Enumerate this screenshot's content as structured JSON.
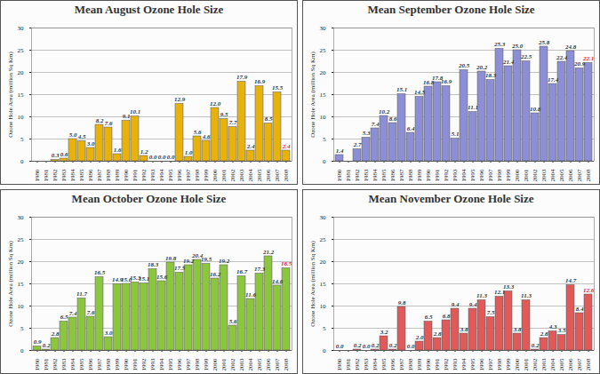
{
  "chart_data": [
    {
      "type": "bar",
      "title": "Mean August Ozone Hole Size",
      "y_label": "Ozone Hole Area (million Sq Km)",
      "categories": [
        "1980",
        "1981",
        "1982",
        "1983",
        "1984",
        "1985",
        "1986",
        "1987",
        "1988",
        "1989",
        "1990",
        "1991",
        "1992",
        "1993",
        "1994",
        "1995",
        "1996",
        "1997",
        "1998",
        "1999",
        "2000",
        "2001",
        "2002",
        "2003",
        "2004",
        "2005",
        "2006",
        "2007",
        "2008"
      ],
      "values": [
        null,
        null,
        0.3,
        0.6,
        5.0,
        4.5,
        3.0,
        8.2,
        7.6,
        1.6,
        9.1,
        10.1,
        1.2,
        0.0,
        0.0,
        0.0,
        12.9,
        1.0,
        5.6,
        4.6,
        12.0,
        9.5,
        7.7,
        17.9,
        2.4,
        16.9,
        8.5,
        15.5,
        2.4
      ],
      "value_labels": [
        null,
        null,
        "0.3",
        "0.6",
        "5.0",
        "4.5",
        "3.0",
        "8.2",
        "7.6",
        "1.6",
        "9.1",
        "10.1",
        "1.2",
        "0.0",
        "0.0",
        "0.0",
        "12.9",
        "1.0",
        "5.6",
        "4.6",
        "12.0",
        "9.5",
        "7.7",
        "17.9",
        "2.4",
        "16.9",
        "8.5",
        "15.5",
        "2.4"
      ],
      "color": "#e8b20c",
      "ylim": [
        0,
        30
      ],
      "yticks": [
        0,
        5,
        10,
        15,
        20,
        25,
        30
      ],
      "grid": true,
      "data_labels": true
    },
    {
      "type": "bar",
      "title": "Mean September Ozone Hole Size",
      "y_label": "Ozone Hole Area (million Sq Km)",
      "categories": [
        "1980",
        "1981",
        "1982",
        "1983",
        "1984",
        "1985",
        "1986",
        "1987",
        "1988",
        "1989",
        "1990",
        "1991",
        "1992",
        "1993",
        "1994",
        "1995",
        "1996",
        "1997",
        "1998",
        "1999",
        "2000",
        "2001",
        "2002",
        "2003",
        "2004",
        "2005",
        "2006",
        "2007",
        "2008"
      ],
      "values": [
        1.4,
        null,
        2.7,
        5.3,
        7.4,
        10.2,
        8.6,
        15.1,
        6.4,
        14.5,
        16.8,
        17.8,
        16.9,
        5.1,
        20.5,
        11.1,
        20.2,
        18.3,
        25.3,
        21.4,
        25.0,
        22.5,
        10.8,
        25.8,
        17.4,
        22.4,
        24.8,
        20.9,
        22.1
      ],
      "value_labels": [
        "1.4",
        null,
        "2.7",
        "5.3",
        "7.4",
        "10.2",
        "8.6",
        "15.1",
        "6.4",
        "14.5",
        "16.8",
        "17.8",
        "16.9",
        "5.1",
        "20.5",
        "11.1",
        "20.2",
        "18.3",
        "25.3",
        "21.4",
        "25.0",
        "22.5",
        "10.8",
        "25.8",
        "17.4",
        "22.4",
        "24.8",
        "20.9",
        "22.1"
      ],
      "color": "#8c8fd6",
      "ylim": [
        0,
        30
      ],
      "yticks": [
        0,
        5,
        10,
        15,
        20,
        25,
        30
      ],
      "grid": true,
      "data_labels": true
    },
    {
      "type": "bar",
      "title": "Mean October Ozone Hole Size",
      "y_label": "Ozone Hole Area (million Sq Km)",
      "categories": [
        "1980",
        "1981",
        "1982",
        "1983",
        "1984",
        "1985",
        "1986",
        "1987",
        "1988",
        "1989",
        "1990",
        "1991",
        "1992",
        "1993",
        "1994",
        "1995",
        "1996",
        "1997",
        "1998",
        "1999",
        "2000",
        "2001",
        "2002",
        "2003",
        "2004",
        "2005",
        "2006",
        "2007",
        "2008"
      ],
      "values": [
        0.9,
        0.2,
        2.8,
        6.5,
        7.4,
        11.7,
        7.6,
        16.5,
        3.0,
        14.9,
        15.0,
        15.3,
        15.1,
        18.3,
        15.6,
        19.8,
        17.5,
        19.2,
        20.4,
        19.5,
        16.2,
        19.2,
        5.6,
        16.7,
        11.6,
        17.3,
        21.2,
        14.6,
        18.5
      ],
      "value_labels": [
        "0.9",
        "0.2",
        "2.8",
        "6.5",
        "7.4",
        "11.7",
        "7.6",
        "16.5",
        "3.0",
        "14.9",
        "15.0",
        "15.3",
        "15.1",
        "18.3",
        "15.6",
        "19.8",
        "17.5",
        "19.2",
        "20.4",
        "19.5",
        "16.2",
        "19.2",
        "5.6",
        "16.7",
        "11.6",
        "17.3",
        "21.2",
        "14.6",
        "18.5"
      ],
      "color": "#8cc63e",
      "ylim": [
        0,
        30
      ],
      "yticks": [
        0,
        5,
        10,
        15,
        20,
        25,
        30
      ],
      "grid": true,
      "data_labels": true
    },
    {
      "type": "bar",
      "title": "Mean November Ozone Hole Size",
      "y_label": "Ozone Hole Area (million Sq Km)",
      "categories": [
        "1980",
        "1981",
        "1982",
        "1983",
        "1984",
        "1985",
        "1986",
        "1987",
        "1988",
        "1989",
        "1990",
        "1991",
        "1992",
        "1993",
        "1994",
        "1995",
        "1996",
        "1997",
        "1998",
        "1999",
        "2000",
        "2001",
        "2002",
        "2003",
        "2004",
        "2005",
        "2006",
        "2007",
        "2008"
      ],
      "values": [
        0.0,
        null,
        0.2,
        0.0,
        0.2,
        3.2,
        0.2,
        9.8,
        0.0,
        2.0,
        6.5,
        2.8,
        6.8,
        9.4,
        3.8,
        9.4,
        11.3,
        7.5,
        12.1,
        13.3,
        3.8,
        11.3,
        0.2,
        2.8,
        4.3,
        3.5,
        14.7,
        8.4,
        12.6
      ],
      "value_labels": [
        "0.0",
        null,
        "0.2",
        "0.0",
        "0.2",
        "3.2",
        "0.2",
        "9.8",
        "0.0",
        "2.0",
        "6.5",
        "2.8",
        "6.8",
        "9.4",
        "3.8",
        "9.4",
        "11.3",
        "7.5",
        "12.1",
        "13.3",
        "3.8",
        "11.3",
        "0.2",
        "2.8",
        "4.3",
        "3.5",
        "14.7",
        "8.4",
        "12.6"
      ],
      "color": "#e05a5a",
      "ylim": [
        0,
        30
      ],
      "yticks": [
        0,
        5,
        10,
        15,
        20,
        25,
        30
      ],
      "grid": true,
      "data_labels": true
    }
  ]
}
